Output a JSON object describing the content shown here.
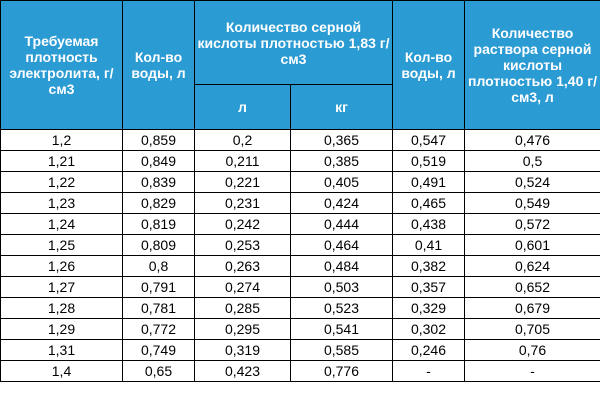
{
  "headers": {
    "density": "Требуемая плотность электролита, г/см3",
    "water1": "Кол-во воды, л",
    "acid_group": "Количество серной кислоты плотностью 1,83 г/см3",
    "acid_l": "л",
    "acid_kg": "кг",
    "water2": "Кол-во воды, л",
    "solution": "Количество раствора серной кислоты плотностью 1,40 г/см3, л"
  },
  "rows": [
    [
      "1,2",
      "0,859",
      "0,2",
      "0,365",
      "0,547",
      "0,476"
    ],
    [
      "1,21",
      "0,849",
      "0,211",
      "0,385",
      "0,519",
      "0,5"
    ],
    [
      "1,22",
      "0,839",
      "0,221",
      "0,405",
      "0,491",
      "0,524"
    ],
    [
      "1,23",
      "0,829",
      "0,231",
      "0,424",
      "0,465",
      "0,549"
    ],
    [
      "1,24",
      "0,819",
      "0,242",
      "0,444",
      "0,438",
      "0,572"
    ],
    [
      "1,25",
      "0,809",
      "0,253",
      "0,464",
      "0,41",
      "0,601"
    ],
    [
      "1,26",
      "0,8",
      "0,263",
      "0,484",
      "0,382",
      "0,624"
    ],
    [
      "1,27",
      "0,791",
      "0,274",
      "0,503",
      "0,357",
      "0,652"
    ],
    [
      "1,28",
      "0,781",
      "0,285",
      "0,523",
      "0,329",
      "0,679"
    ],
    [
      "1,29",
      "0,772",
      "0,295",
      "0,541",
      "0,302",
      "0,705"
    ],
    [
      "1,31",
      "0,749",
      "0,319",
      "0,585",
      "0,246",
      "0,76"
    ],
    [
      "1,4",
      "0,65",
      "0,423",
      "0,776",
      "-",
      "-"
    ]
  ],
  "colors": {
    "header_bg": "#2b9bd3",
    "header_text": "#ffffff",
    "border": "#000000"
  }
}
